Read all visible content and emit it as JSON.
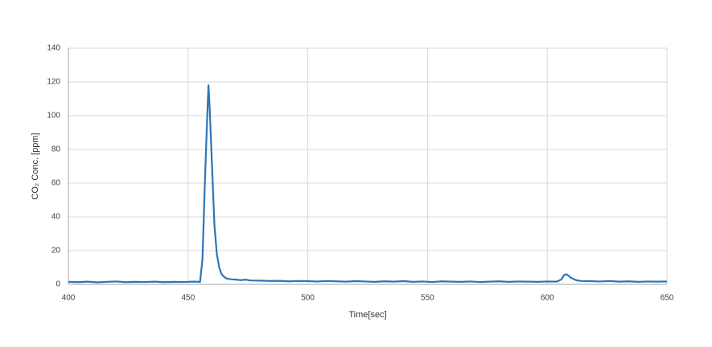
{
  "chart_data": {
    "type": "line",
    "xlabel": "Time[sec]",
    "ylabel": "CO₂ Conc. [ppm]",
    "x": [
      400,
      404,
      408,
      412,
      416,
      420,
      424,
      428,
      432,
      436,
      440,
      444,
      448,
      452,
      455,
      456,
      457,
      458,
      458.5,
      459,
      460,
      461,
      462,
      463,
      464,
      465,
      466,
      468,
      470,
      472,
      474,
      476,
      480,
      484,
      488,
      492,
      496,
      500,
      504,
      508,
      512,
      516,
      520,
      524,
      528,
      532,
      536,
      540,
      544,
      548,
      552,
      556,
      560,
      564,
      568,
      572,
      576,
      580,
      584,
      588,
      592,
      596,
      600,
      604,
      606,
      607,
      608,
      609,
      610,
      612,
      614,
      618,
      622,
      626,
      630,
      634,
      638,
      642,
      646,
      650
    ],
    "series": [
      {
        "color": "#2e75b6",
        "values": [
          1.5,
          1.3,
          1.6,
          1.2,
          1.5,
          1.7,
          1.3,
          1.5,
          1.4,
          1.6,
          1.3,
          1.5,
          1.4,
          1.6,
          1.5,
          15,
          60,
          100,
          118,
          105,
          70,
          35,
          18,
          10,
          6,
          4.5,
          3.5,
          3,
          2.8,
          2.5,
          2.8,
          2.3,
          2.2,
          2.0,
          2.1,
          1.8,
          2.0,
          1.9,
          1.7,
          2.0,
          1.8,
          1.6,
          1.9,
          1.7,
          1.5,
          1.8,
          1.6,
          1.9,
          1.5,
          1.7,
          1.4,
          1.8,
          1.6,
          1.5,
          1.7,
          1.4,
          1.6,
          1.8,
          1.5,
          1.7,
          1.6,
          1.5,
          1.7,
          1.6,
          3,
          5.5,
          6,
          5,
          3.8,
          2.5,
          2.0,
          1.9,
          1.7,
          2.0,
          1.6,
          1.8,
          1.5,
          1.7,
          1.6,
          1.7
        ]
      }
    ],
    "xlim": [
      400,
      650
    ],
    "xticks": [
      400,
      450,
      500,
      550,
      600,
      650
    ],
    "ylim": [
      0,
      140
    ],
    "yticks": [
      0,
      20,
      40,
      60,
      80,
      100,
      120,
      140
    ],
    "grid": true
  }
}
